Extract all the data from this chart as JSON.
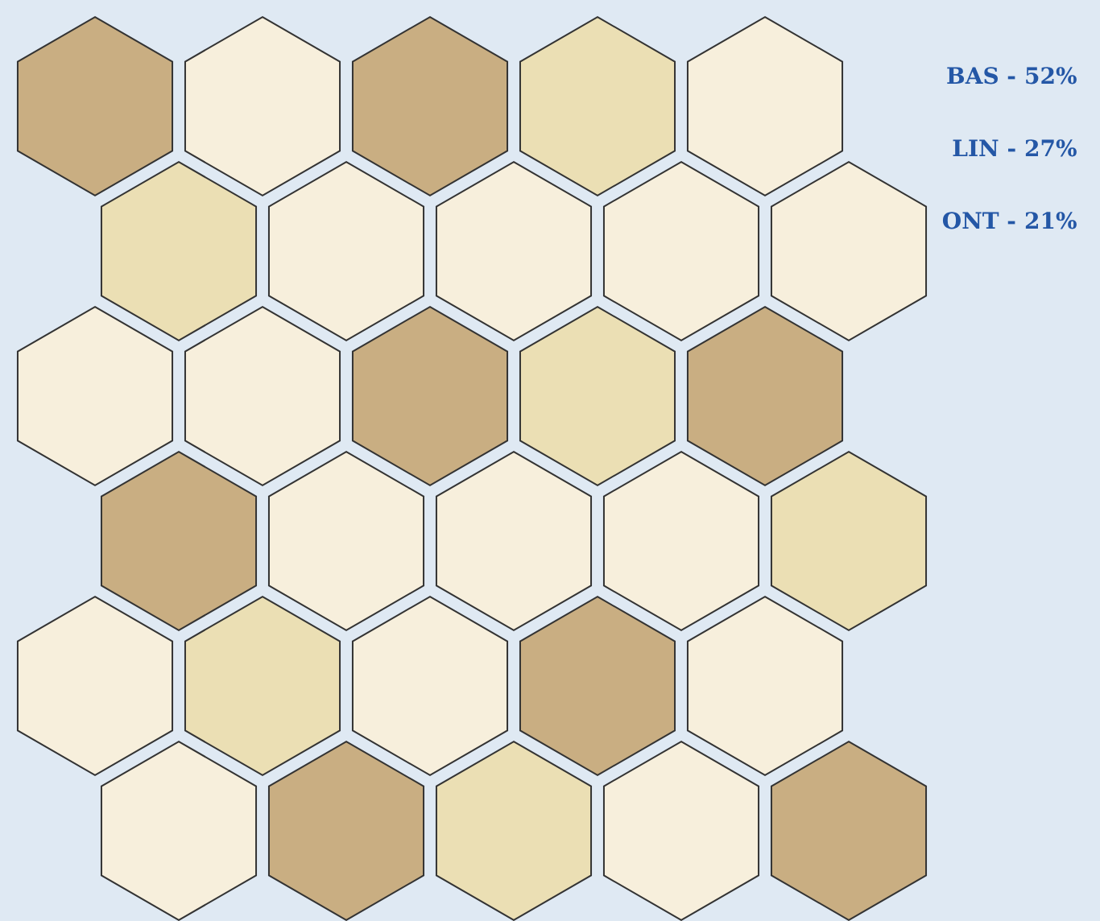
{
  "chart_data": {
    "type": "other",
    "categories": [
      "BAS -",
      "LIN -",
      "ONT -"
    ],
    "values": [
      52,
      27,
      21
    ],
    "value_labels": [
      "52%",
      "27%",
      "21%"
    ],
    "colors": [
      "#f7efdc",
      "#c9ae82",
      "#ebdfb4"
    ]
  }
}
